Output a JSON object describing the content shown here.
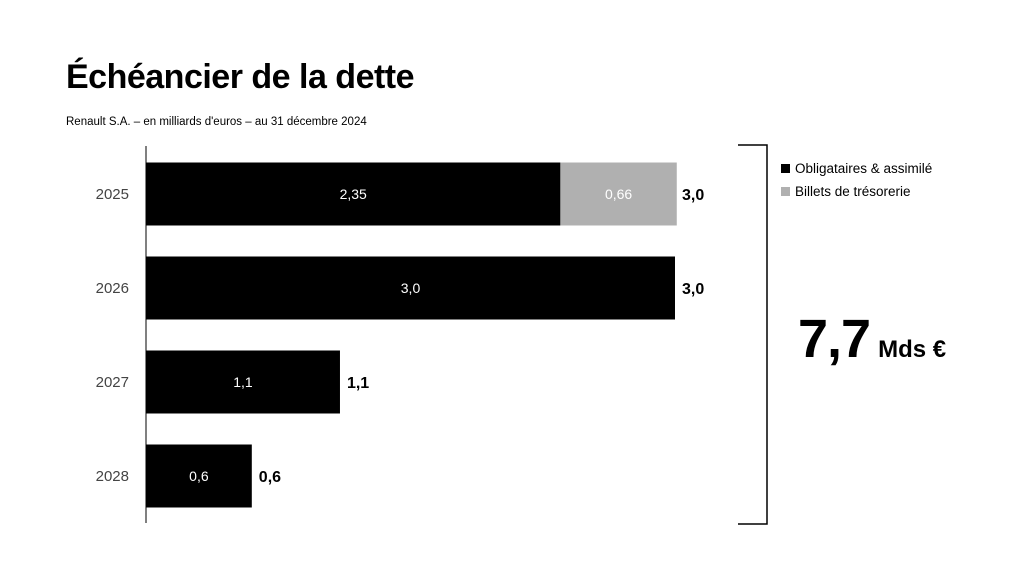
{
  "title": "Échéancier de la dette",
  "subtitle": "Renault S.A. – en milliards d'euros – au 31 décembre 2024",
  "legend": [
    {
      "label": "Obligataires & assimilé",
      "color": "#000000"
    },
    {
      "label": "Billets de trésorerie",
      "color": "#b0b0b0"
    }
  ],
  "total": {
    "value": "7,7",
    "unit": "Mds €"
  },
  "chart_data": {
    "type": "bar",
    "orientation": "horizontal",
    "stacked": true,
    "categories": [
      "2025",
      "2026",
      "2027",
      "2028"
    ],
    "series": [
      {
        "name": "Obligataires & assimilé",
        "color": "#000000",
        "values": [
          2.35,
          3.0,
          1.1,
          0.6
        ],
        "labels": [
          "2,35",
          "3,0",
          "1,1",
          "0,6"
        ]
      },
      {
        "name": "Billets de trésorerie",
        "color": "#b0b0b0",
        "values": [
          0.66,
          0,
          0,
          0
        ],
        "labels": [
          "0,66",
          "",
          "",
          ""
        ]
      }
    ],
    "totals": [
      "3,0",
      "3,0",
      "1,1",
      "0,6"
    ],
    "xlim": [
      0,
      3.0
    ],
    "grid": false,
    "legend_position": "right"
  }
}
